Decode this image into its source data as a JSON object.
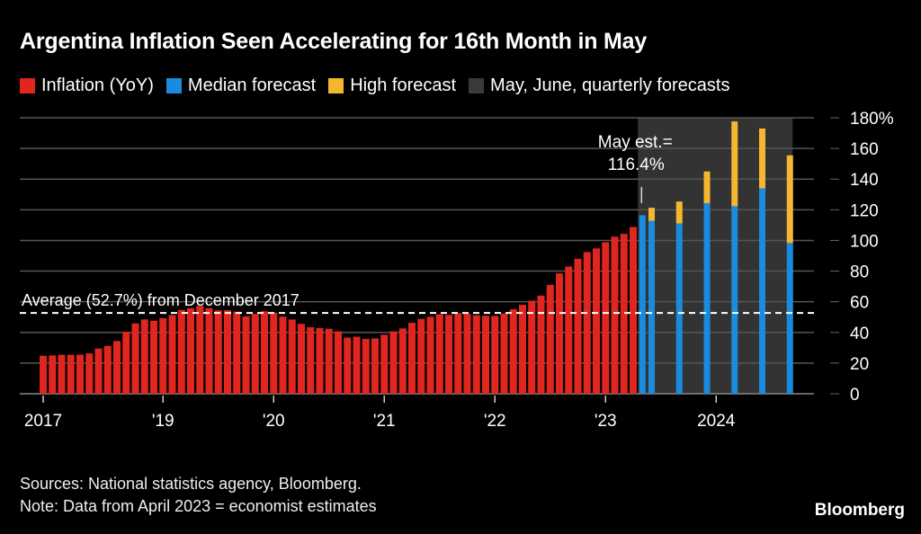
{
  "title": "Argentina Inflation Seen Accelerating for 16th Month in May",
  "legend": [
    {
      "label": "Inflation (YoY)",
      "color": "#e0261f"
    },
    {
      "label": "Median forecast",
      "color": "#1b8be0"
    },
    {
      "label": "High forecast",
      "color": "#f5b730"
    },
    {
      "label": "May, June, quarterly forecasts",
      "color": "#3a3a3a"
    }
  ],
  "footer": {
    "sources": "Sources: National statistics agency, Bloomberg.",
    "note": "Note: Data from April 2023 = economist estimates",
    "brand": "Bloomberg"
  },
  "chart_data": {
    "type": "bar",
    "title": "Argentina Inflation Seen Accelerating for 16th Month in May",
    "ylim": [
      0,
      180
    ],
    "y_ticks": [
      "0",
      "20",
      "40",
      "60",
      "80",
      "100",
      "120",
      "140",
      "160",
      "180%"
    ],
    "y_tick_values": [
      0,
      20,
      40,
      60,
      80,
      100,
      120,
      140,
      160,
      180
    ],
    "x_ticks": [
      {
        "label": "2017",
        "month": "2017-12"
      },
      {
        "label": "'19",
        "month": "2019-01"
      },
      {
        "label": "'20",
        "month": "2020-01"
      },
      {
        "label": "'21",
        "month": "2021-01"
      },
      {
        "label": "'22",
        "month": "2022-01"
      },
      {
        "label": "'23",
        "month": "2023-01"
      },
      {
        "label": "2024",
        "month": "2024-01"
      }
    ],
    "grid": true,
    "axis_position": "right",
    "legend_position": "top",
    "shaded_region": {
      "from": "2023-05",
      "to": "2024-09",
      "label": "May, June, quarterly forecasts"
    },
    "average_line": {
      "value": 52.7,
      "label": "Average (52.7%) from December 2017"
    },
    "annotation": {
      "line1": "May est.=",
      "line2": "116.4%",
      "month": "2023-05"
    },
    "series": [
      {
        "name": "Inflation (YoY)",
        "color": "#e0261f",
        "months": [
          "2017-12",
          "2018-01",
          "2018-02",
          "2018-03",
          "2018-04",
          "2018-05",
          "2018-06",
          "2018-07",
          "2018-08",
          "2018-09",
          "2018-10",
          "2018-11",
          "2018-12",
          "2019-01",
          "2019-02",
          "2019-03",
          "2019-04",
          "2019-05",
          "2019-06",
          "2019-07",
          "2019-08",
          "2019-09",
          "2019-10",
          "2019-11",
          "2019-12",
          "2020-01",
          "2020-02",
          "2020-03",
          "2020-04",
          "2020-05",
          "2020-06",
          "2020-07",
          "2020-08",
          "2020-09",
          "2020-10",
          "2020-11",
          "2020-12",
          "2021-01",
          "2021-02",
          "2021-03",
          "2021-04",
          "2021-05",
          "2021-06",
          "2021-07",
          "2021-08",
          "2021-09",
          "2021-10",
          "2021-11",
          "2021-12",
          "2022-01",
          "2022-02",
          "2022-03",
          "2022-04",
          "2022-05",
          "2022-06",
          "2022-07",
          "2022-08",
          "2022-09",
          "2022-10",
          "2022-11",
          "2022-12",
          "2023-01",
          "2023-02",
          "2023-03",
          "2023-04"
        ],
        "values": [
          24.8,
          25.0,
          25.4,
          25.4,
          25.5,
          26.3,
          29.5,
          31.2,
          34.4,
          40.5,
          45.9,
          48.5,
          47.6,
          49.3,
          51.3,
          54.7,
          55.8,
          57.3,
          55.8,
          54.4,
          54.5,
          53.5,
          50.5,
          52.1,
          53.8,
          52.9,
          50.3,
          48.4,
          45.6,
          43.4,
          42.8,
          42.4,
          40.7,
          36.6,
          37.2,
          35.8,
          36.1,
          38.5,
          40.7,
          42.6,
          46.3,
          48.8,
          50.2,
          51.8,
          51.4,
          52.5,
          52.1,
          51.2,
          50.9,
          50.7,
          52.3,
          55.1,
          58.0,
          60.7,
          64.0,
          71.0,
          78.5,
          83.0,
          88.0,
          92.4,
          94.8,
          98.8,
          102.5,
          104.3,
          108.8
        ]
      },
      {
        "name": "Median forecast",
        "color": "#1b8be0",
        "months": [
          "2023-05",
          "2023-06",
          "2023-09",
          "2023-12",
          "2024-03",
          "2024-06",
          "2024-09"
        ],
        "values": [
          116.4,
          112.7,
          111.0,
          124.3,
          122.3,
          134.0,
          98.3
        ]
      },
      {
        "name": "High forecast",
        "color": "#f5b730",
        "months": [
          "2023-05",
          "2023-06",
          "2023-09",
          "2023-12",
          "2024-03",
          "2024-06",
          "2024-09"
        ],
        "values": [
          116.4,
          121.3,
          125.4,
          145.0,
          177.6,
          173.0,
          155.5
        ]
      }
    ]
  }
}
